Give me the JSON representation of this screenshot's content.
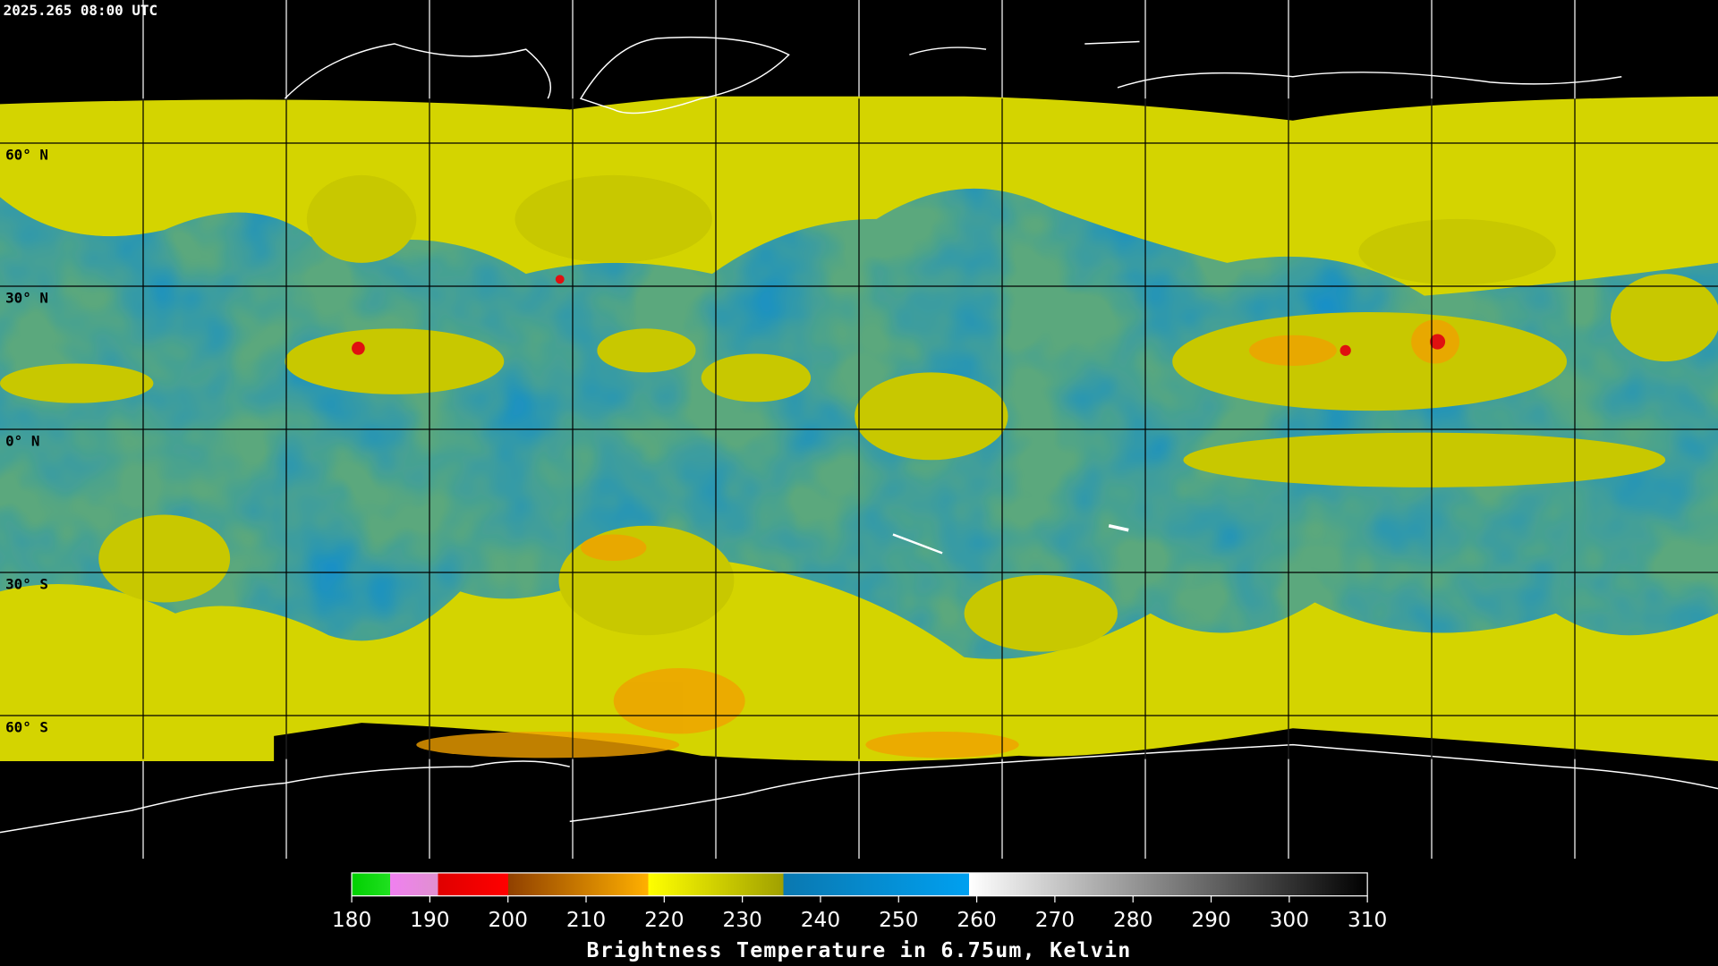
{
  "timestamp": "2025.265 08:00 UTC",
  "latitudes": [
    {
      "value": 60,
      "label": "60° N"
    },
    {
      "value": 30,
      "label": "30° N"
    },
    {
      "value": 0,
      "label": "0° N"
    },
    {
      "value": -30,
      "label": "30° S"
    },
    {
      "value": -60,
      "label": "60° S"
    }
  ],
  "colorbar": {
    "title": "Brightness Temperature in 6.75um, Kelvin",
    "ticks": [
      180,
      190,
      200,
      210,
      220,
      230,
      240,
      250,
      260,
      270,
      280,
      290,
      300,
      310
    ]
  }
}
